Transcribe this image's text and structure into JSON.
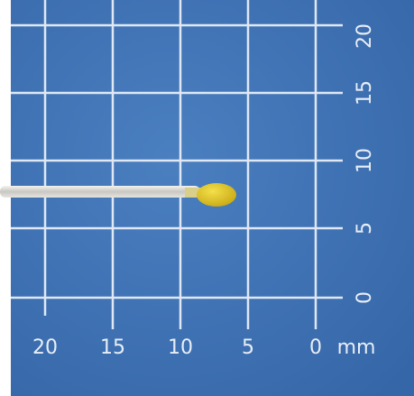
{
  "scale": {
    "bottom_labels": [
      "20",
      "15",
      "10",
      "5",
      "0"
    ],
    "unit": "mm",
    "side_labels": [
      "20",
      "15",
      "10",
      "5",
      "0"
    ]
  }
}
